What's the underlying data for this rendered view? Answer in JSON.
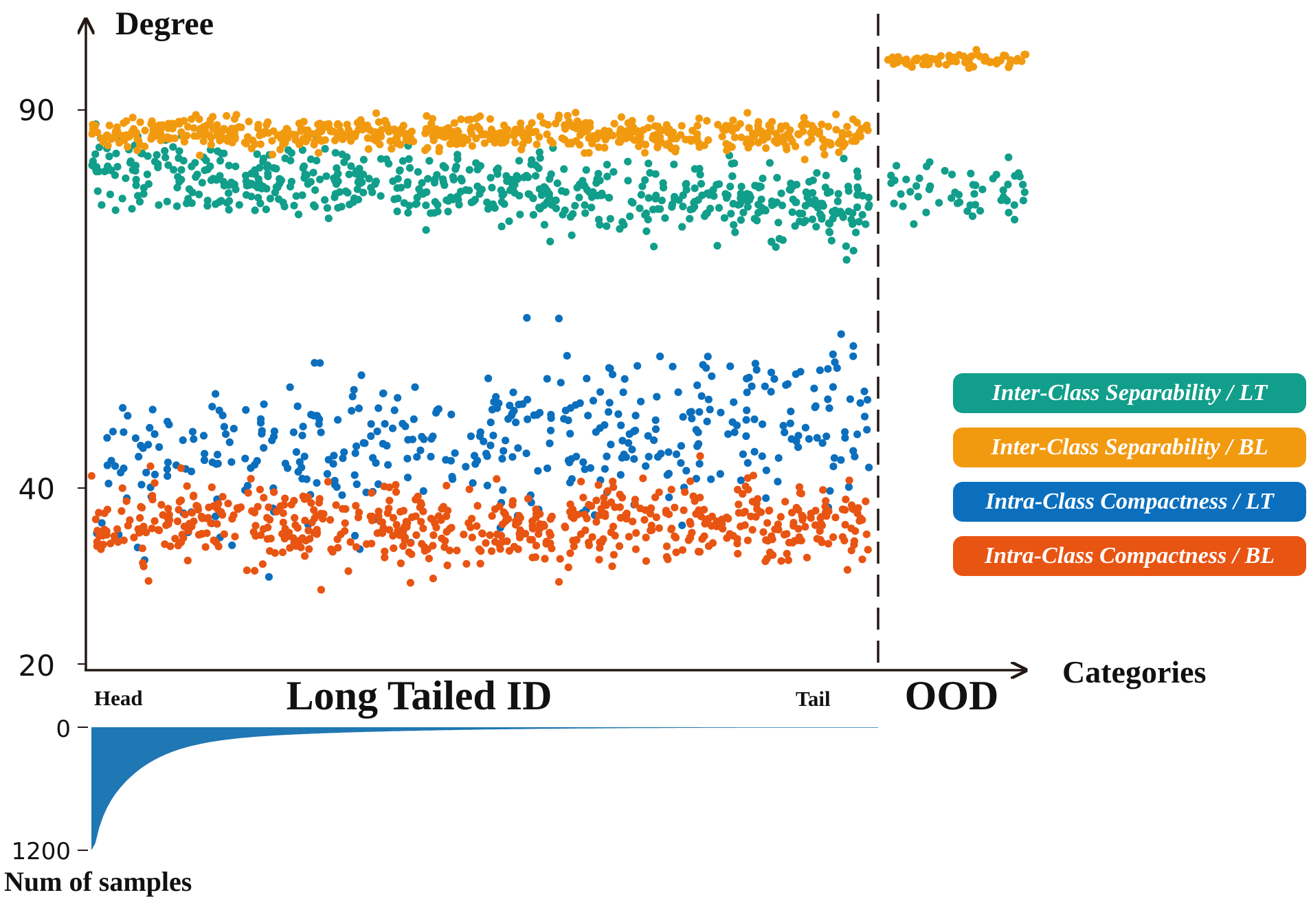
{
  "chart_data": [
    {
      "type": "scatter",
      "title": "",
      "ylabel": "Degree",
      "xlabel": "Categories",
      "y_ticks": [
        "90",
        "40",
        "20"
      ],
      "ylim": [
        20,
        94
      ],
      "regions": {
        "id": "Long Tailed ID",
        "ood": "OOD",
        "head": "Head",
        "tail": "Tail"
      },
      "series": [
        {
          "name": "Inter-Class Separability / LT",
          "color": "#119e8a",
          "id_mean_start": 82,
          "id_mean_end": 77,
          "id_spread": 2.4,
          "ood_mean": 79.5,
          "ood_spread": 2.2
        },
        {
          "name": "Inter-Class Separability / BL",
          "color": "#f29a0f",
          "id_mean_start": 87,
          "id_mean_end": 86.5,
          "id_spread": 1.1,
          "ood_mean": 96.5,
          "ood_spread": 0.5
        },
        {
          "name": "Intra-Class Compactness / LT",
          "color": "#0b6fbd",
          "id_mean_start": 41,
          "id_mean_end": 51,
          "id_spread": 5.5,
          "ood_mean": null,
          "ood_spread": null
        },
        {
          "name": "Intra-Class Compactness / BL",
          "color": "#e85412",
          "id_mean_start": 35,
          "id_mean_end": 35,
          "id_spread": 2.6,
          "ood_mean": null,
          "ood_spread": null
        }
      ],
      "legend_position": "right"
    },
    {
      "type": "area",
      "ylabel": "Num of samples",
      "y_ticks": [
        "0",
        "1200"
      ],
      "ylim": [
        0,
        1200
      ],
      "color": "#1f77b4",
      "head_value": 1200,
      "tail_value": 5
    }
  ]
}
